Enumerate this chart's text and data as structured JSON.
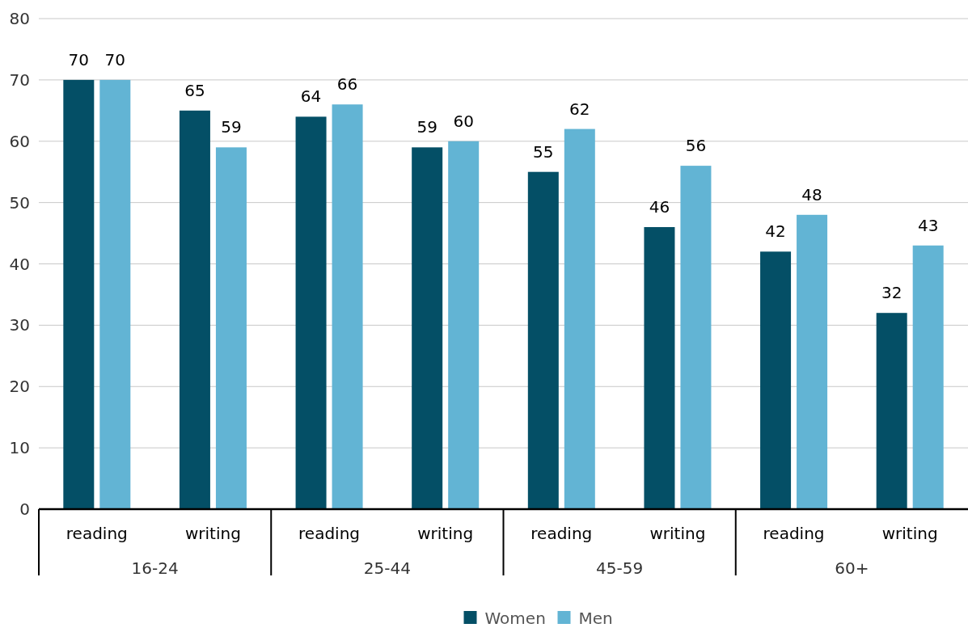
{
  "chart_data": {
    "type": "bar",
    "categories": [
      "reading",
      "writing",
      "reading",
      "writing",
      "reading",
      "writing",
      "reading",
      "writing"
    ],
    "series": [
      {
        "name": "Women",
        "color": "#044f66",
        "values": [
          70,
          65,
          64,
          59,
          55,
          46,
          42,
          32
        ]
      },
      {
        "name": "Men",
        "color": "#62b4d4",
        "values": [
          70,
          59,
          66,
          60,
          62,
          56,
          48,
          43
        ]
      }
    ],
    "annotations": [
      "16-24",
      "25-44",
      "45-59",
      "60+"
    ],
    "ylim": [
      0,
      80
    ],
    "yticks": [
      0,
      10,
      20,
      30,
      40,
      50,
      60,
      70,
      80
    ],
    "grid": "y",
    "legend": "bottom",
    "data_labels": true
  }
}
